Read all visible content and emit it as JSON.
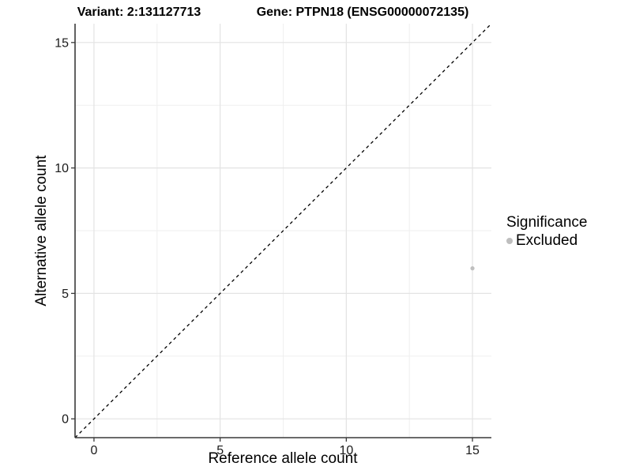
{
  "figure": {
    "title_left": "Variant: 2:131127713",
    "title_right": "Gene: PTPN18 (ENSG00000072135)"
  },
  "legend": {
    "title": "Significance",
    "items": [
      {
        "label": "Excluded",
        "color": "#bebebe"
      }
    ]
  },
  "chart_data": {
    "type": "scatter",
    "title": "Variant: 2:131127713   Gene: PTPN18 (ENSG00000072135)",
    "xlabel": "Reference allele count",
    "ylabel": "Alternative allele count",
    "xlim": [
      -0.75,
      15.75
    ],
    "ylim": [
      -0.75,
      15.75
    ],
    "x_ticks": [
      0,
      5,
      10,
      15
    ],
    "y_ticks": [
      0,
      5,
      10,
      15
    ],
    "minor_ticks": [
      2.5,
      7.5,
      12.5
    ],
    "grid": true,
    "legend_position": "right",
    "series": [
      {
        "name": "Excluded",
        "color": "#bfbfbf",
        "points": [
          [
            15,
            6
          ]
        ]
      }
    ],
    "reference_line": {
      "type": "identity",
      "style": "dashed",
      "color": "#000000"
    },
    "colors": {
      "grid_major": "#e3e3e3",
      "grid_minor": "#efefef",
      "axis": "#3a3a3a",
      "tick_label": "#1a1a1a",
      "background": "#ffffff"
    }
  }
}
